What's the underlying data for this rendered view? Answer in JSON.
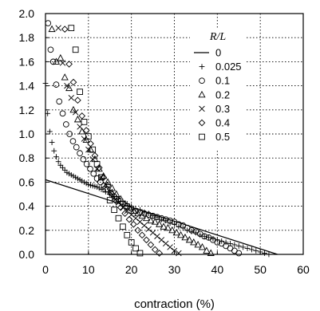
{
  "chart_data": {
    "type": "scatter",
    "xlabel": "contraction (%)",
    "ylabel": "",
    "xlim": [
      0,
      60
    ],
    "ylim": [
      0,
      2.0
    ],
    "xticks": [
      "0",
      "10",
      "20",
      "30",
      "40",
      "50",
      "60"
    ],
    "yticks": [
      "0.0",
      "0.2",
      "0.4",
      "0.6",
      "0.8",
      "1.0",
      "1.2",
      "1.4",
      "1.6",
      "1.8",
      "2.0"
    ],
    "grid": true,
    "legend": {
      "title": "R/L",
      "position": "top-right"
    },
    "series": [
      {
        "name": "0",
        "marker": "line",
        "x": [
          0,
          54
        ],
        "y": [
          0.62,
          0.0
        ]
      },
      {
        "name": "0.025",
        "marker": "plus",
        "x": [
          0,
          0.5,
          1,
          1.5,
          2,
          2.5,
          3,
          3.5,
          4,
          4.5,
          5,
          5.5,
          6,
          6.5,
          7,
          7.5,
          8,
          8.5,
          9,
          9.5,
          10,
          10.5,
          11,
          11.5,
          12,
          12.5,
          13,
          14,
          15,
          16,
          17,
          18,
          19,
          20,
          21,
          22,
          23,
          24,
          25,
          26,
          27,
          28,
          29,
          30,
          31,
          32,
          33,
          34,
          35,
          36,
          37,
          38,
          39,
          40,
          41,
          42,
          43,
          44,
          45,
          46,
          47,
          48,
          49,
          50,
          51,
          52
        ],
        "y": [
          1.42,
          1.17,
          1.02,
          0.93,
          0.86,
          0.81,
          0.77,
          0.74,
          0.72,
          0.7,
          0.68,
          0.67,
          0.66,
          0.65,
          0.64,
          0.63,
          0.62,
          0.61,
          0.6,
          0.59,
          0.58,
          0.575,
          0.57,
          0.565,
          0.56,
          0.55,
          0.54,
          0.52,
          0.5,
          0.48,
          0.46,
          0.44,
          0.42,
          0.4,
          0.38,
          0.37,
          0.35,
          0.34,
          0.32,
          0.31,
          0.29,
          0.28,
          0.26,
          0.25,
          0.23,
          0.22,
          0.2,
          0.19,
          0.18,
          0.16,
          0.15,
          0.14,
          0.13,
          0.12,
          0.11,
          0.1,
          0.09,
          0.08,
          0.07,
          0.06,
          0.05,
          0.04,
          0.03,
          0.02,
          0.01,
          0.0
        ]
      },
      {
        "name": "0.1",
        "marker": "circle",
        "x": [
          0.6,
          1.2,
          1.8,
          2.5,
          3.2,
          4,
          4.8,
          5.6,
          6.4,
          7.2,
          8,
          8.8,
          9.6,
          10.4,
          11.2,
          12,
          12.8,
          13.6,
          14.4,
          15.2,
          16,
          17,
          18,
          19,
          20,
          21,
          22,
          23,
          24,
          25,
          26,
          27,
          28,
          29,
          30,
          31,
          32,
          33,
          34,
          35,
          36,
          37,
          38,
          39,
          40,
          41,
          42,
          43,
          44,
          45
        ],
        "y": [
          1.92,
          1.7,
          1.6,
          1.41,
          1.27,
          1.17,
          1.08,
          1.0,
          0.94,
          0.89,
          0.84,
          0.79,
          0.75,
          0.71,
          0.67,
          0.63,
          0.6,
          0.57,
          0.54,
          0.51,
          0.48,
          0.45,
          0.42,
          0.4,
          0.38,
          0.36,
          0.35,
          0.34,
          0.33,
          0.32,
          0.31,
          0.3,
          0.29,
          0.28,
          0.27,
          0.25,
          0.24,
          0.22,
          0.2,
          0.19,
          0.17,
          0.15,
          0.14,
          0.12,
          0.1,
          0.09,
          0.07,
          0.05,
          0.03,
          0.01
        ]
      },
      {
        "name": "0.2",
        "marker": "triangle",
        "x": [
          1.5,
          2.5,
          3.5,
          4.5,
          5.5,
          6.5,
          7.5,
          8.5,
          9.5,
          10.5,
          11.5,
          12.5,
          13.5,
          14.5,
          15.5,
          16.5,
          17.5,
          18.5,
          19.5,
          20.5,
          21.5,
          22.5,
          23.5,
          24.5,
          25.5,
          26.5,
          27.5,
          28.5,
          29.5,
          30.5,
          31.5,
          32.5,
          33.5,
          34.5,
          35.5,
          36.5,
          37.5,
          38.5
        ],
        "y": [
          1.87,
          1.6,
          1.63,
          1.47,
          1.38,
          1.2,
          1.12,
          1.02,
          0.95,
          0.87,
          0.79,
          0.71,
          0.65,
          0.6,
          0.55,
          0.5,
          0.46,
          0.42,
          0.39,
          0.36,
          0.34,
          0.32,
          0.3,
          0.28,
          0.27,
          0.25,
          0.23,
          0.22,
          0.2,
          0.18,
          0.16,
          0.14,
          0.12,
          0.1,
          0.08,
          0.06,
          0.03,
          0.01
        ]
      },
      {
        "name": "0.3",
        "marker": "cross",
        "x": [
          3,
          4,
          5,
          6,
          7,
          8,
          9,
          10,
          11,
          12,
          13,
          14,
          15,
          16,
          17,
          18,
          19,
          20,
          21,
          22,
          23,
          24,
          25,
          26,
          27,
          28,
          29,
          30,
          31
        ],
        "y": [
          1.88,
          1.59,
          1.4,
          1.3,
          1.18,
          1.06,
          0.96,
          0.87,
          0.79,
          0.71,
          0.64,
          0.58,
          0.52,
          0.47,
          0.43,
          0.39,
          0.36,
          0.33,
          0.3,
          0.27,
          0.24,
          0.21,
          0.18,
          0.15,
          0.12,
          0.09,
          0.06,
          0.03,
          0.01
        ]
      },
      {
        "name": "0.4",
        "marker": "diamond",
        "x": [
          4.5,
          5.5,
          6.5,
          7.5,
          8.5,
          9.5,
          10.5,
          11.5,
          12.5,
          13.5,
          14.5,
          15.5,
          16.5,
          17.5,
          18.5,
          19.5,
          20.5,
          21.5,
          22.5,
          23.5,
          24.5,
          25.5,
          26.5
        ],
        "y": [
          1.87,
          1.58,
          1.43,
          1.28,
          1.15,
          1.03,
          0.92,
          0.82,
          0.72,
          0.64,
          0.57,
          0.5,
          0.44,
          0.39,
          0.34,
          0.29,
          0.25,
          0.2,
          0.16,
          0.12,
          0.08,
          0.04,
          0.01
        ]
      },
      {
        "name": "0.5",
        "marker": "square",
        "x": [
          6,
          7,
          8,
          9,
          10,
          11,
          12,
          13,
          14,
          15,
          16,
          17,
          18,
          19,
          20,
          21,
          22
        ],
        "y": [
          1.88,
          1.7,
          1.35,
          1.1,
          0.98,
          0.87,
          0.75,
          0.64,
          0.54,
          0.45,
          0.37,
          0.3,
          0.23,
          0.16,
          0.1,
          0.05,
          0.01
        ]
      }
    ]
  }
}
